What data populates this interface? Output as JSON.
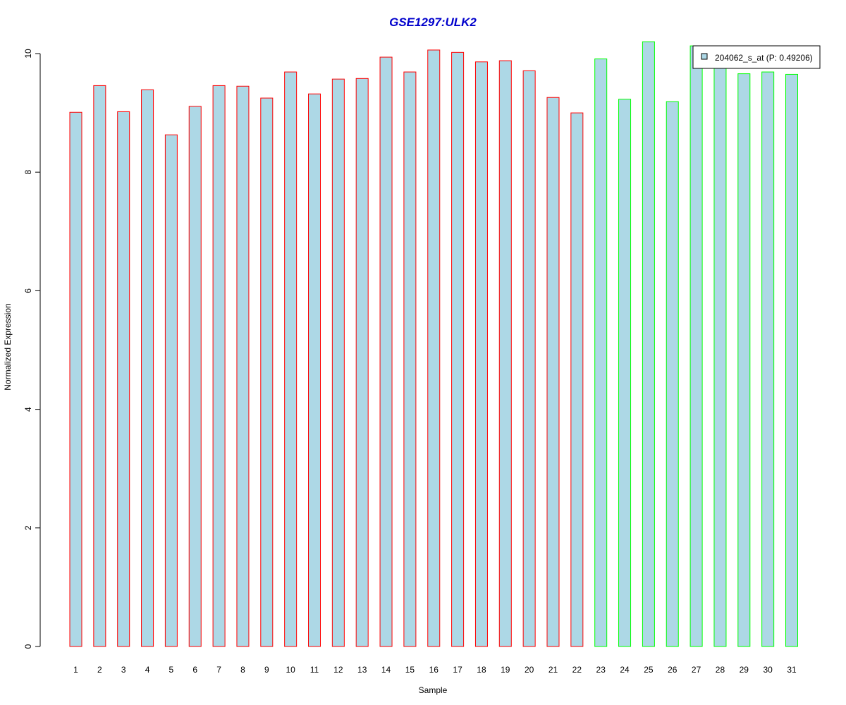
{
  "chart_data": {
    "type": "bar",
    "title": "GSE1297:ULK2",
    "xlabel": "Sample",
    "ylabel": "Normalized Expression",
    "ylim": [
      0,
      10.2
    ],
    "yticks": [
      0,
      2,
      4,
      6,
      8,
      10
    ],
    "categories": [
      "1",
      "2",
      "3",
      "4",
      "5",
      "6",
      "7",
      "8",
      "9",
      "10",
      "11",
      "12",
      "13",
      "14",
      "15",
      "16",
      "17",
      "18",
      "19",
      "20",
      "21",
      "22",
      "23",
      "24",
      "25",
      "26",
      "27",
      "28",
      "29",
      "30",
      "31"
    ],
    "values": [
      9.01,
      9.46,
      9.02,
      9.39,
      8.63,
      9.11,
      9.46,
      9.45,
      9.25,
      9.69,
      9.32,
      9.57,
      9.58,
      9.94,
      9.69,
      10.06,
      10.02,
      9.86,
      9.88,
      9.71,
      9.26,
      9.0,
      9.91,
      9.23,
      10.2,
      9.19,
      10.13,
      9.85,
      9.66,
      9.69,
      9.65
    ],
    "group_sizes": [
      22,
      9
    ],
    "grid": false,
    "legend": {
      "position": "top-right",
      "entries": [
        "204062_s_at (P: 0.49206)"
      ]
    },
    "colors": {
      "title": "#0000CC",
      "bar_fill": "#ADD8E6",
      "group_1_border": "#FF0000",
      "group_2_border": "#00FF00",
      "axis": "#000000"
    }
  }
}
